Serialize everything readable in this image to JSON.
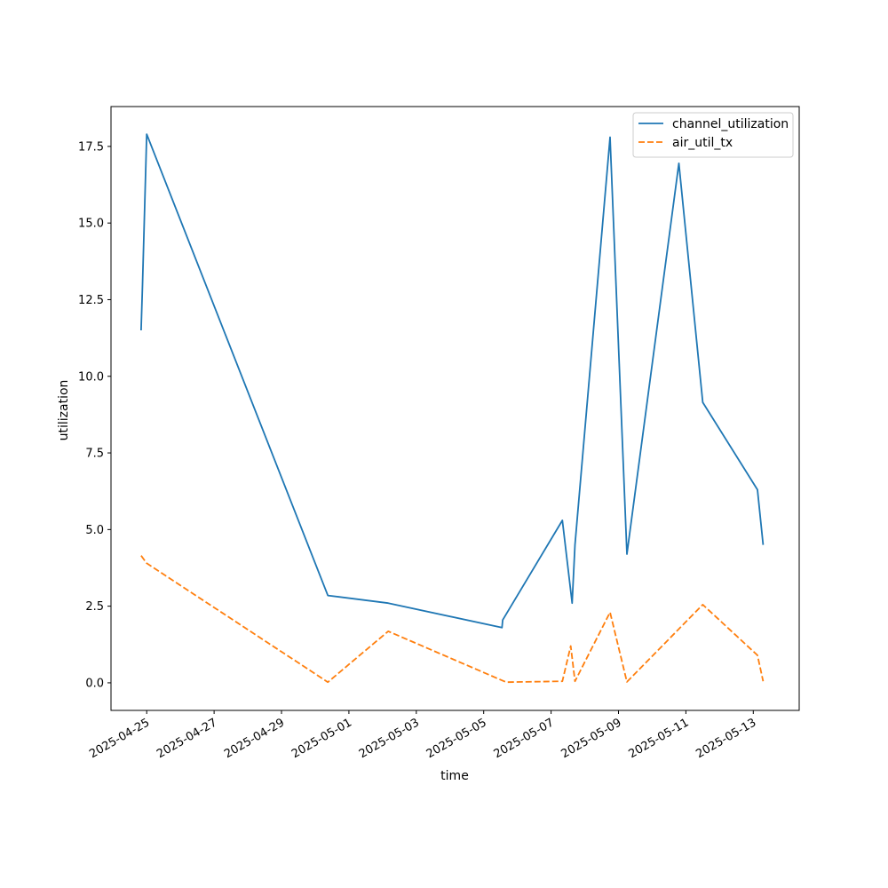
{
  "chart_data": {
    "type": "line",
    "title": "",
    "xlabel": "time",
    "ylabel": "utilization",
    "x_axis_type": "date",
    "xlim": [
      "2025-04-23T22:34",
      "2025-05-14T08:42"
    ],
    "ylim": [
      -0.9,
      18.8
    ],
    "x_ticks": [
      "2025-04-25",
      "2025-04-27",
      "2025-04-29",
      "2025-05-01",
      "2025-05-03",
      "2025-05-05",
      "2025-05-07",
      "2025-05-09",
      "2025-05-11",
      "2025-05-13"
    ],
    "y_ticks": [
      0.0,
      2.5,
      5.0,
      7.5,
      10.0,
      12.5,
      15.0,
      17.5
    ],
    "y_tick_labels": [
      "0.0",
      "2.5",
      "5.0",
      "7.5",
      "10.0",
      "12.5",
      "15.0",
      "17.5"
    ],
    "legend_position": "top-right",
    "grid": false,
    "series": [
      {
        "name": "channel_utilization",
        "color": "#1f77b4",
        "dash": "solid",
        "points": [
          [
            "2025-04-24T20:00",
            11.5
          ],
          [
            "2025-04-24T21:00",
            13.0
          ],
          [
            "2025-04-25T00:00",
            17.9
          ],
          [
            "2025-04-30T09:00",
            2.85
          ],
          [
            "2025-05-02T04:00",
            2.6
          ],
          [
            "2025-05-05T13:00",
            1.8
          ],
          [
            "2025-05-05T13:30",
            2.05
          ],
          [
            "2025-05-07T08:00",
            5.3
          ],
          [
            "2025-05-07T15:00",
            2.6
          ],
          [
            "2025-05-07T17:00",
            4.5
          ],
          [
            "2025-05-08T18:00",
            17.8
          ],
          [
            "2025-05-09T06:00",
            4.2
          ],
          [
            "2025-05-10T19:00",
            16.95
          ],
          [
            "2025-05-11T12:00",
            9.15
          ],
          [
            "2025-05-13T03:00",
            6.3
          ],
          [
            "2025-05-13T07:00",
            4.5
          ]
        ]
      },
      {
        "name": "air_util_tx",
        "color": "#ff7f0e",
        "dash": "dashed",
        "points": [
          [
            "2025-04-24T20:00",
            4.15
          ],
          [
            "2025-04-25T00:00",
            3.9
          ],
          [
            "2025-04-30T09:00",
            0.02
          ],
          [
            "2025-05-02T04:00",
            1.68
          ],
          [
            "2025-05-05T13:00",
            0.08
          ],
          [
            "2025-05-05T16:00",
            0.02
          ],
          [
            "2025-05-07T08:00",
            0.05
          ],
          [
            "2025-05-07T14:00",
            1.2
          ],
          [
            "2025-05-07T17:00",
            0.05
          ],
          [
            "2025-05-08T18:00",
            2.3
          ],
          [
            "2025-05-09T06:00",
            0.03
          ],
          [
            "2025-05-11T12:00",
            2.55
          ],
          [
            "2025-05-13T03:00",
            0.9
          ],
          [
            "2025-05-13T07:00",
            0.05
          ]
        ]
      }
    ]
  }
}
